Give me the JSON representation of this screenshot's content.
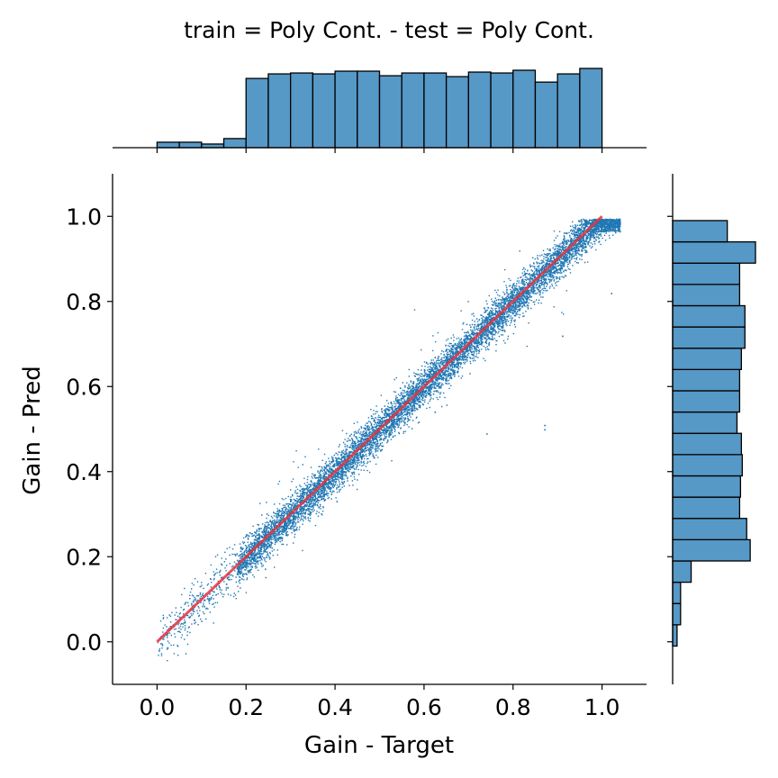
{
  "chart_data": {
    "type": "scatter",
    "title": "train = Poly Cont. - test = Poly Cont.",
    "xlabel": "Gain - Target",
    "ylabel": "Gain - Pred",
    "xlim": [
      -0.1,
      1.1
    ],
    "ylim": [
      -0.1,
      1.1
    ],
    "x_ticks": [
      0.0,
      0.2,
      0.4,
      0.6,
      0.8,
      1.0
    ],
    "y_ticks": [
      0.0,
      0.2,
      0.4,
      0.6,
      0.8,
      1.0
    ],
    "x_tick_labels": [
      "0.0",
      "0.2",
      "0.4",
      "0.6",
      "0.8",
      "1.0"
    ],
    "y_tick_labels": [
      "0.0",
      "0.2",
      "0.4",
      "0.6",
      "0.8",
      "1.0"
    ],
    "point_color": "#1f77b4",
    "reference_line": {
      "x": [
        0.0,
        1.0
      ],
      "y": [
        0.0,
        1.0
      ],
      "color": "#e8323c"
    },
    "scatter_series": [
      {
        "x_range": [
          0.0,
          0.18
        ],
        "density": "low",
        "spread": 0.028
      },
      {
        "x_range": [
          0.18,
          1.04
        ],
        "density": "high",
        "spread": 0.022
      }
    ],
    "outliers": [
      {
        "x": 0.74,
        "y": 0.49
      },
      {
        "x": 0.87,
        "y": 0.5
      },
      {
        "x": 0.87,
        "y": 0.51
      },
      {
        "x": 1.02,
        "y": 0.82
      },
      {
        "x": 0.91,
        "y": 0.72
      }
    ],
    "x_marginal_histogram": {
      "bin_edges": [
        0.0,
        0.05,
        0.1,
        0.15,
        0.2,
        0.25,
        0.3,
        0.35,
        0.4,
        0.45,
        0.5,
        0.55,
        0.6,
        0.65,
        0.7,
        0.75,
        0.8,
        0.85,
        0.9,
        0.95,
        1.0
      ],
      "counts": [
        6,
        6,
        4,
        10,
        76,
        81,
        82,
        81,
        84,
        84,
        79,
        82,
        82,
        78,
        83,
        82,
        85,
        72,
        81,
        87
      ],
      "color": "#5698c6"
    },
    "y_marginal_histogram": {
      "bin_edges": [
        -0.01,
        0.04,
        0.09,
        0.14,
        0.19,
        0.24,
        0.29,
        0.34,
        0.39,
        0.44,
        0.49,
        0.54,
        0.59,
        0.64,
        0.69,
        0.74,
        0.79,
        0.84,
        0.89,
        0.94,
        0.99
      ],
      "counts": [
        5,
        9,
        9,
        21,
        88,
        84,
        76,
        77,
        79,
        78,
        73,
        76,
        76,
        78,
        82,
        82,
        76,
        76,
        94,
        62
      ],
      "color": "#5698c6"
    }
  }
}
